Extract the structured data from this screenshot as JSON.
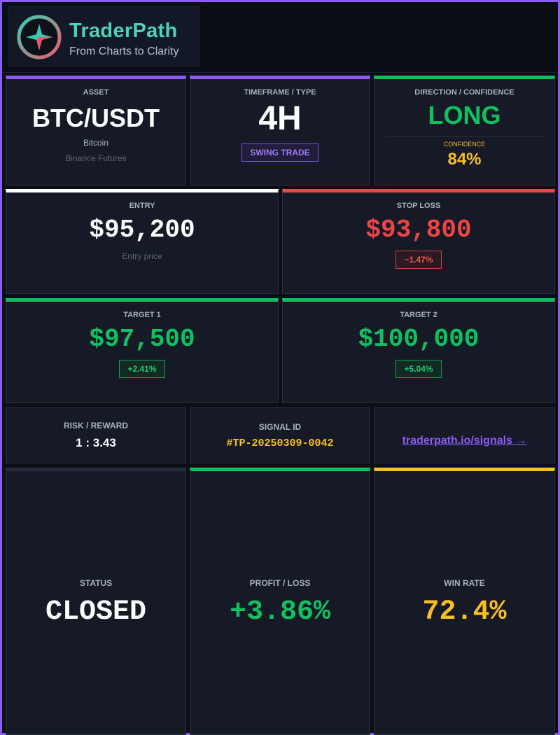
{
  "header": {
    "brand": "TraderPath",
    "tagline": "From Charts to Clarity"
  },
  "asset": {
    "label": "ASSET",
    "symbol": "BTC/USDT",
    "name": "Bitcoin",
    "exchange": "Binance Futures"
  },
  "timeframe": {
    "label": "TIMEFRAME / TYPE",
    "value": "4H",
    "type": "SWING TRADE"
  },
  "direction": {
    "label": "DIRECTION / CONFIDENCE",
    "value": "LONG",
    "confidence_label": "CONFIDENCE",
    "confidence": "84%"
  },
  "entry": {
    "label": "ENTRY",
    "price": "$95,200",
    "note": "Entry price"
  },
  "stop_loss": {
    "label": "STOP LOSS",
    "price": "$93,800",
    "change": "−1.47%"
  },
  "target_1": {
    "label": "TARGET 1",
    "price": "$97,500",
    "change": "+2.41%"
  },
  "target_2": {
    "label": "TARGET 2",
    "price": "$100,000",
    "change": "+5.04%"
  },
  "risk_reward": {
    "label": "RISK / REWARD",
    "value": "1 : 3.43"
  },
  "signal": {
    "label": "SIGNAL ID",
    "value": "#TP-20250309-0042"
  },
  "link": {
    "text": "traderpath.io/signals →"
  },
  "status": {
    "label": "STATUS",
    "value": "CLOSED"
  },
  "pnl": {
    "label": "PROFIT / LOSS",
    "value": "+3.86%"
  },
  "win_rate": {
    "label": "WIN RATE",
    "value": "72.4%"
  }
}
